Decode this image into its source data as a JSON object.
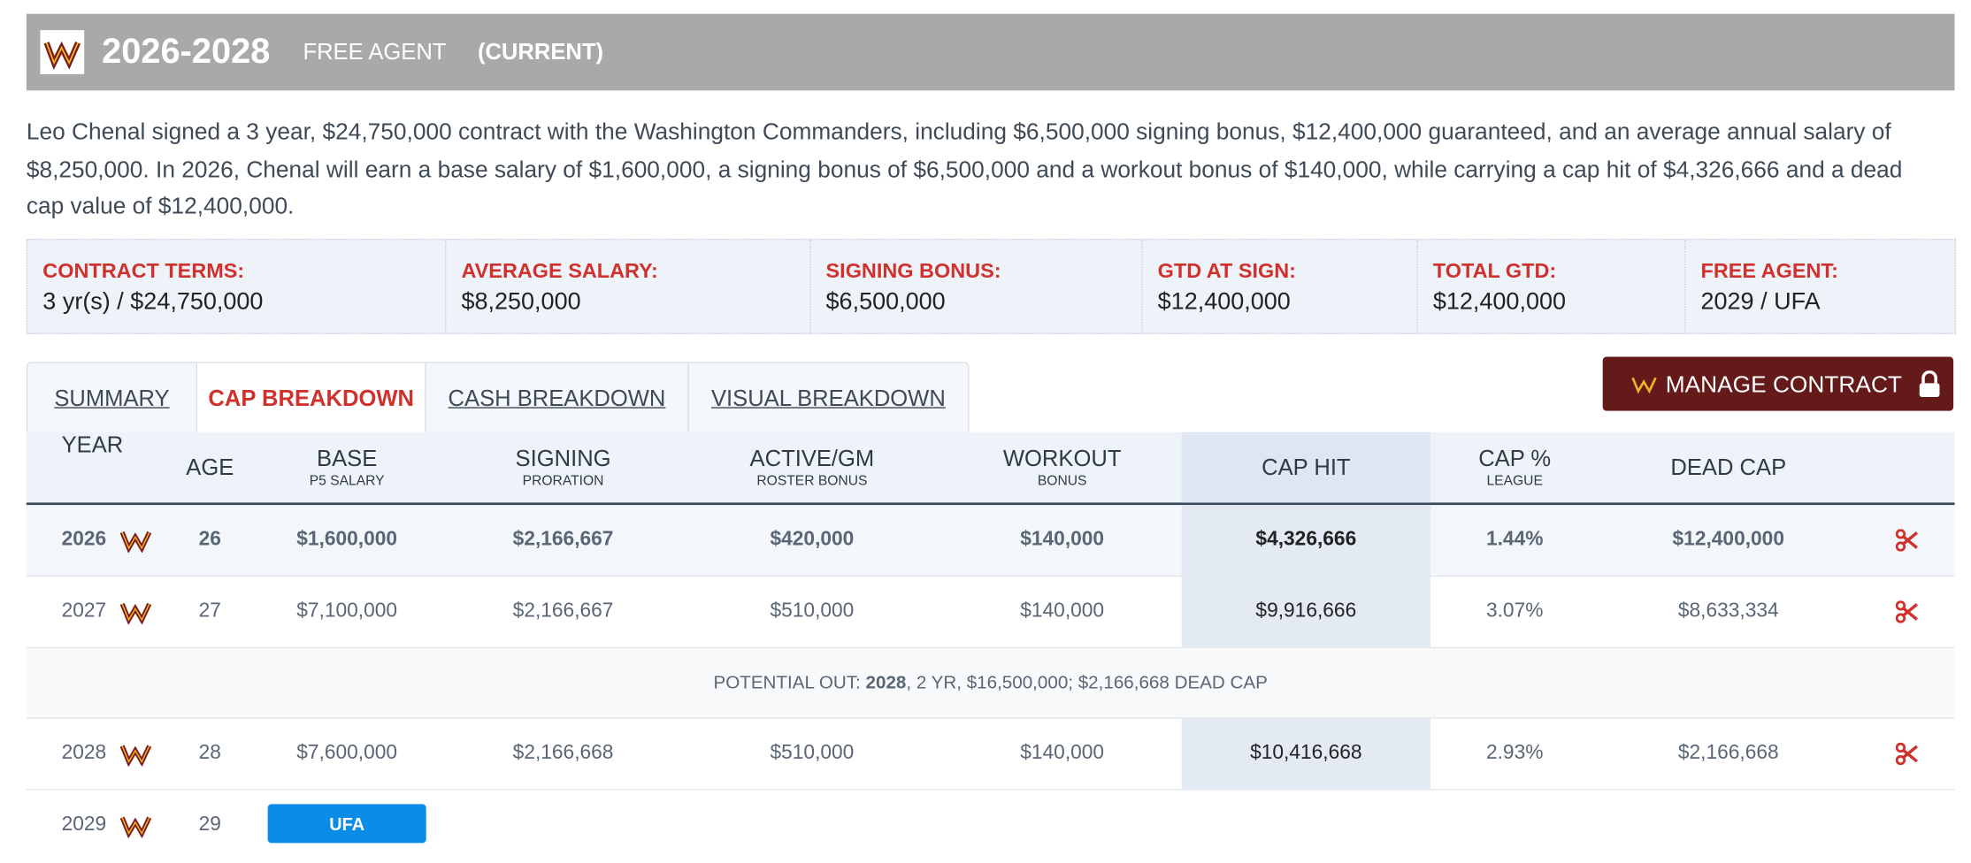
{
  "header": {
    "years": "2026-2028",
    "status": "FREE AGENT",
    "current": "(CURRENT)"
  },
  "description": "Leo Chenal signed a 3 year, $24,750,000 contract with the Washington Commanders, including $6,500,000 signing bonus, $12,400,000 guaranteed, and an average annual salary of $8,250,000. In 2026, Chenal will earn a base salary of $1,600,000, a signing bonus of $6,500,000 and a workout bonus of $140,000, while carrying a cap hit of $4,326,666 and a dead cap value of $12,400,000.",
  "terms": [
    {
      "label": "CONTRACT TERMS:",
      "value": "3 yr(s) / $24,750,000"
    },
    {
      "label": "AVERAGE SALARY:",
      "value": "$8,250,000"
    },
    {
      "label": "SIGNING BONUS:",
      "value": "$6,500,000"
    },
    {
      "label": "GTD AT SIGN:",
      "value": "$12,400,000"
    },
    {
      "label": "TOTAL GTD:",
      "value": "$12,400,000"
    },
    {
      "label": "FREE AGENT:",
      "value": "2029 / UFA"
    }
  ],
  "tabs": [
    "SUMMARY",
    "CAP BREAKDOWN",
    "CASH BREAKDOWN",
    "VISUAL BREAKDOWN"
  ],
  "active_tab": 1,
  "button": "MANAGE CONTRACT",
  "table": {
    "columns": [
      {
        "title": "YEAR"
      },
      {
        "title": "AGE"
      },
      {
        "title": "BASE",
        "sub": "P5 SALARY"
      },
      {
        "title": "SIGNING",
        "sub": "PRORATION"
      },
      {
        "title": "ACTIVE/GM",
        "sub": "ROSTER BONUS"
      },
      {
        "title": "WORKOUT",
        "sub": "BONUS"
      },
      {
        "title": "CAP HIT"
      },
      {
        "title": "CAP %",
        "sub": "LEAGUE"
      },
      {
        "title": "DEAD CAP"
      }
    ],
    "rows": [
      [
        "2026",
        "26",
        "$1,600,000",
        "$2,166,667",
        "$420,000",
        "$140,000",
        "$4,326,666",
        "1.44%",
        "$12,400,000"
      ],
      [
        "2027",
        "27",
        "$7,100,000",
        "$2,166,667",
        "$510,000",
        "$140,000",
        "$9,916,666",
        "3.07%",
        "$8,633,334"
      ]
    ],
    "potential_out": {
      "label": "POTENTIAL OUT:",
      "year": "2028",
      "rest": ", 2 YR, $16,500,000; $2,166,668 DEAD CAP"
    },
    "rows_after": [
      [
        "2028",
        "28",
        "$7,600,000",
        "$2,166,668",
        "$510,000",
        "$140,000",
        "$10,416,668",
        "2.93%",
        "$2,166,668"
      ]
    ],
    "fa_row": {
      "year": "2029",
      "age": "29",
      "badge": "UFA"
    }
  }
}
